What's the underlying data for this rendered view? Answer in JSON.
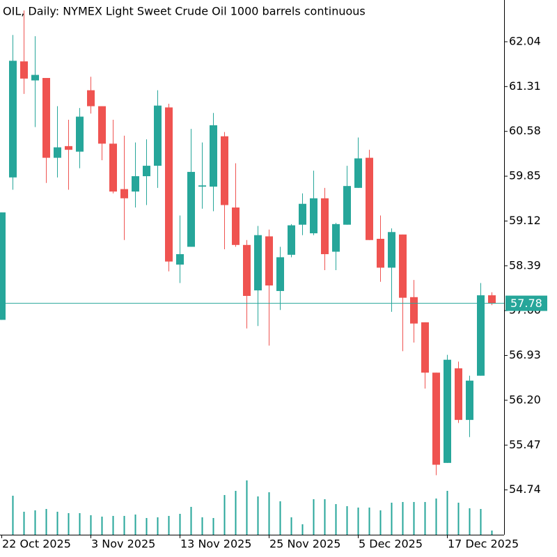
{
  "chart_data": {
    "type": "candlestick",
    "title": "OIL, Daily:  NYMEX Light Sweet Crude Oil 1000 barrels continuous",
    "categories": [
      "22 Oct 2025",
      null,
      null,
      null,
      null,
      null,
      null,
      null,
      "3 Nov 2025",
      null,
      null,
      null,
      null,
      null,
      null,
      null,
      "13 Nov 2025",
      null,
      null,
      null,
      null,
      null,
      null,
      null,
      "25 Nov 2025",
      null,
      null,
      null,
      null,
      null,
      null,
      null,
      "5 Dec 2025",
      null,
      null,
      null,
      null,
      null,
      null,
      null,
      "17 Dec 2025",
      null,
      null,
      null,
      null
    ],
    "open": [
      57.51,
      59.83,
      61.72,
      61.41,
      61.45,
      60.15,
      60.34,
      60.25,
      61.25,
      60.99,
      60.38,
      59.64,
      59.6,
      59.85,
      60.02,
      60.97,
      58.41,
      58.7,
      59.68,
      59.68,
      60.5,
      59.34,
      58.73,
      57.99,
      58.87,
      57.98,
      58.57,
      59.06,
      58.92,
      59.49,
      58.62,
      59.06,
      59.66,
      60.15,
      58.83,
      58.36,
      58.9,
      57.88,
      57.47,
      56.65,
      55.18,
      56.72,
      55.88,
      56.6,
      57.91
    ],
    "high": [
      59.26,
      62.15,
      62.55,
      62.13,
      61.45,
      60.99,
      60.77,
      60.96,
      61.47,
      60.99,
      60.77,
      60.51,
      60.4,
      60.45,
      61.25,
      61.03,
      59.21,
      60.62,
      60.4,
      60.88,
      60.57,
      60.06,
      58.81,
      59.04,
      58.98,
      58.7,
      59.07,
      59.57,
      59.94,
      59.66,
      59.09,
      60.02,
      60.48,
      60.28,
      59.21,
      59.0,
      58.9,
      58.16,
      57.47,
      56.65,
      56.94,
      56.83,
      56.6,
      58.11,
      57.96
    ],
    "low": [
      57.51,
      59.63,
      61.19,
      60.65,
      59.74,
      59.83,
      59.63,
      59.98,
      60.87,
      60.11,
      59.57,
      58.81,
      59.34,
      59.38,
      59.66,
      58.3,
      58.11,
      58.7,
      59.32,
      59.28,
      58.66,
      58.7,
      57.37,
      57.41,
      57.09,
      57.67,
      58.53,
      58.89,
      58.89,
      58.32,
      58.32,
      59.06,
      59.66,
      58.81,
      58.13,
      57.64,
      57.0,
      57.14,
      56.39,
      54.98,
      55.18,
      55.83,
      55.6,
      56.6,
      57.75
    ],
    "close": [
      59.26,
      61.73,
      61.44,
      61.5,
      60.15,
      60.32,
      60.28,
      60.82,
      60.99,
      60.38,
      59.6,
      59.49,
      59.85,
      60.02,
      61.0,
      58.46,
      58.58,
      59.92,
      59.7,
      60.68,
      59.38,
      58.73,
      57.9,
      58.89,
      58.07,
      58.53,
      59.05,
      59.4,
      59.49,
      58.58,
      59.07,
      59.69,
      60.14,
      58.81,
      58.36,
      58.94,
      57.87,
      57.45,
      56.65,
      55.15,
      56.86,
      55.88,
      56.52,
      57.91,
      57.78
    ],
    "volume": [
      null,
      56,
      33,
      35,
      37,
      33,
      31,
      31,
      28,
      26,
      27,
      27,
      29,
      24,
      25,
      27,
      30,
      40,
      25,
      24,
      57,
      63,
      78,
      55,
      61,
      48,
      25,
      15,
      51,
      51,
      44,
      41,
      39,
      39,
      35,
      46,
      47,
      47,
      47,
      52,
      63,
      46,
      38,
      37,
      6
    ],
    "up_color": "#26a69a",
    "down_color": "#ef5350",
    "volume_color": "#26a69a",
    "ylim": [
      54.01,
      62.72
    ],
    "yticks": [
      {
        "value": 54.74,
        "label": "54.74"
      },
      {
        "value": 55.47,
        "label": "55.47"
      },
      {
        "value": 56.2,
        "label": "56.20"
      },
      {
        "value": 56.93,
        "label": "56.93"
      },
      {
        "value": 57.66,
        "label": "57.66"
      },
      {
        "value": 58.39,
        "label": "58.39"
      },
      {
        "value": 59.12,
        "label": "59.12"
      },
      {
        "value": 59.85,
        "label": "59.85"
      },
      {
        "value": 60.58,
        "label": "60.58"
      },
      {
        "value": 61.31,
        "label": "61.31"
      },
      {
        "value": 62.04,
        "label": "62.04"
      }
    ],
    "last_price": 57.78,
    "grid": false
  }
}
